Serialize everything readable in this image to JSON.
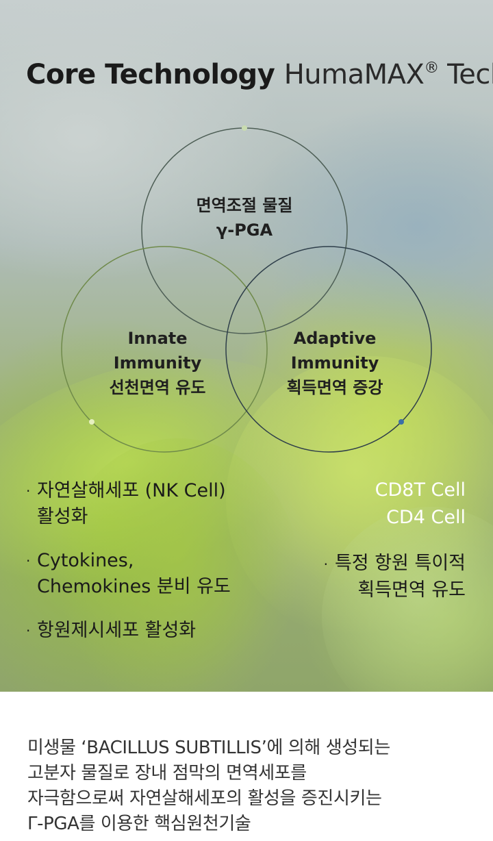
{
  "header": {
    "title_bold": "Core Technology",
    "title_light": "HumaMAX",
    "title_reg": "®",
    "title_tail": " Tech."
  },
  "venn": {
    "top": {
      "line1": "면역조절 물질",
      "line2": "γ-PGA"
    },
    "left": {
      "line1": "Innate",
      "line2": "Immunity",
      "line3": "선천면역 유도"
    },
    "right": {
      "line1": "Adaptive",
      "line2": "Immunity",
      "line3": "획득면역 증강"
    }
  },
  "innate_effects": {
    "bullet": "·",
    "items": [
      {
        "line1": "자연살해세포 (NK Cell)",
        "line2": "활성화"
      },
      {
        "line1": "Cytokines,",
        "line2": "Chemokines 분비 유도"
      },
      {
        "line1": "항원제시세포 활성화",
        "line2": ""
      }
    ]
  },
  "adaptive_effects": {
    "cells": [
      "CD8T Cell",
      "CD4 Cell"
    ],
    "bullet": "·",
    "line1": "특정 항원 특이적",
    "line2": "획득면역 유도"
  },
  "description": {
    "lines": [
      "미생물 ‘BACILLUS SUBTILLIS’에 의해 생성되는",
      "고분자 물질로 장내 점막의 면역세포를",
      "자극함으로써 자연살해세포의 활성을 증진시키는",
      "Γ-PGA를 이용한 핵심원천기술"
    ]
  },
  "colors": {
    "ring_top": "#4d5e55",
    "ring_left": "#6f8a4a",
    "ring_right": "#2e3e4a",
    "dot_top": "#c9dcb0",
    "dot_left": "#e6f0c0",
    "dot_right": "#3b6fa8"
  }
}
